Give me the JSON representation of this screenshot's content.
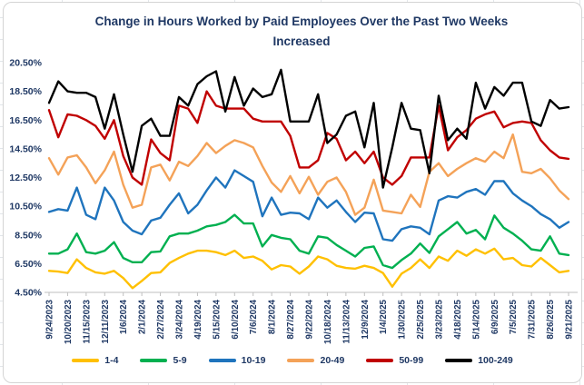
{
  "chart_data": {
    "type": "line",
    "title": "Change in Hours Worked by Paid Employees Over the Past Two Weeks Increased",
    "title_line1": "Change in Hours Worked by Paid Employees Over the Past Two Weeks",
    "title_line2": "Increased",
    "xlabel": "",
    "ylabel": "",
    "ylim": [
      4.5,
      20.5
    ],
    "ytick_step": 2,
    "ytick_format": "percent-2dp",
    "grid": false,
    "legend_position": "bottom",
    "x_labels_shown_every": 2,
    "text_color": "#1f3864",
    "axis_color": "#bfbfbf",
    "x": [
      "9/24/2023",
      "10/7/2023",
      "10/20/2023",
      "11/2/2023",
      "11/15/2023",
      "11/28/2023",
      "12/11/2023",
      "12/24/2023",
      "1/6/2024",
      "1/19/2024",
      "2/1/2024",
      "2/14/2024",
      "2/27/2024",
      "3/11/2024",
      "3/24/2024",
      "4/6/2024",
      "4/19/2024",
      "5/2/2024",
      "5/15/2024",
      "5/28/2024",
      "6/10/2024",
      "6/23/2024",
      "7/6/2024",
      "7/19/2024",
      "8/1/2024",
      "8/14/2024",
      "8/27/2024",
      "9/9/2024",
      "9/22/2024",
      "10/5/2024",
      "10/18/2024",
      "10/31/2024",
      "11/13/2024",
      "11/26/2024",
      "12/9/2024",
      "12/22/2024",
      "1/4/2025",
      "1/17/2025",
      "1/30/2025",
      "2/12/2025",
      "2/25/2025",
      "3/10/2025",
      "3/23/2025",
      "4/5/2025",
      "4/18/2025",
      "5/1/2025",
      "5/14/2025",
      "5/27/2025",
      "6/9/2025",
      "6/22/2025",
      "7/5/2025",
      "7/18/2025",
      "7/31/2025",
      "8/13/2025",
      "8/26/2025",
      "9/8/2025",
      "9/21/2025"
    ],
    "x_tick_labels": [
      "9/24/2023",
      "10/20/2023",
      "11/15/2023",
      "12/11/2023",
      "1/6/2024",
      "2/1/2024",
      "2/27/2024",
      "3/24/2024",
      "4/19/2024",
      "5/15/2024",
      "6/10/2024",
      "7/6/2024",
      "8/1/2024",
      "8/27/2024",
      "9/22/2024",
      "10/18/2024",
      "11/13/2024",
      "12/9/2024",
      "1/4/2025",
      "1/30/2025",
      "2/25/2025",
      "3/23/2025",
      "4/18/2025",
      "5/14/2025",
      "6/9/2025",
      "7/5/2025",
      "7/31/2025",
      "8/26/2025",
      "9/21/2025"
    ],
    "y_tick_labels": [
      "4.50%",
      "6.50%",
      "8.50%",
      "10.50%",
      "12.50%",
      "14.50%",
      "16.50%",
      "18.50%",
      "20.50%"
    ],
    "series": [
      {
        "name": "1-4",
        "color": "#ffc000",
        "values": [
          6.0,
          5.95,
          5.85,
          6.8,
          6.2,
          5.9,
          5.8,
          6.0,
          5.5,
          4.8,
          5.3,
          5.85,
          5.9,
          6.55,
          6.9,
          7.2,
          7.4,
          7.4,
          7.3,
          7.1,
          7.4,
          6.9,
          7.0,
          6.7,
          6.1,
          6.4,
          6.3,
          5.8,
          6.3,
          7.0,
          6.8,
          6.35,
          6.2,
          6.15,
          6.35,
          6.2,
          5.85,
          4.9,
          5.8,
          6.2,
          6.8,
          6.2,
          7.0,
          6.7,
          7.4,
          7.05,
          7.5,
          7.2,
          7.55,
          6.8,
          6.9,
          6.4,
          6.3,
          6.9,
          6.4,
          5.9,
          6.0
        ]
      },
      {
        "name": "5-9",
        "color": "#00b050",
        "values": [
          7.2,
          7.2,
          7.5,
          8.6,
          7.3,
          7.2,
          7.4,
          8.0,
          6.9,
          6.6,
          6.6,
          7.3,
          7.35,
          8.4,
          8.6,
          8.6,
          8.8,
          9.1,
          9.2,
          9.4,
          9.9,
          9.3,
          9.3,
          7.7,
          8.5,
          8.3,
          8.2,
          7.4,
          7.2,
          8.4,
          8.3,
          7.8,
          7.4,
          7.0,
          7.6,
          7.7,
          6.4,
          6.2,
          6.75,
          7.2,
          7.9,
          7.25,
          8.4,
          8.9,
          9.4,
          8.6,
          8.85,
          8.2,
          9.85,
          9.0,
          8.6,
          8.1,
          7.5,
          7.4,
          8.4,
          7.2,
          7.1
        ]
      },
      {
        "name": "10-19",
        "color": "#1f74bd",
        "values": [
          10.1,
          10.3,
          10.2,
          11.8,
          9.9,
          9.6,
          11.8,
          10.9,
          9.4,
          8.8,
          8.55,
          9.5,
          9.7,
          10.6,
          11.4,
          10.0,
          10.6,
          11.6,
          12.5,
          11.8,
          13.0,
          12.6,
          12.2,
          9.8,
          11.1,
          9.9,
          10.05,
          10.0,
          9.6,
          11.1,
          10.4,
          10.9,
          10.1,
          9.4,
          10.05,
          10.0,
          8.2,
          8.1,
          8.9,
          9.1,
          9.0,
          8.55,
          10.9,
          11.2,
          11.1,
          11.5,
          11.7,
          11.3,
          12.25,
          12.25,
          11.4,
          10.9,
          10.5,
          9.95,
          9.6,
          9.0,
          9.4
        ]
      },
      {
        "name": "20-49",
        "color": "#f4a258",
        "values": [
          13.85,
          12.7,
          13.9,
          14.05,
          13.2,
          12.1,
          13.0,
          14.3,
          12.0,
          10.4,
          10.6,
          13.2,
          13.4,
          12.3,
          13.6,
          13.3,
          14.0,
          14.9,
          14.2,
          14.7,
          15.1,
          14.9,
          14.6,
          13.3,
          12.15,
          11.5,
          12.6,
          11.4,
          12.55,
          11.3,
          12.2,
          12.5,
          11.5,
          9.9,
          10.4,
          12.35,
          10.2,
          10.1,
          10.0,
          11.3,
          10.45,
          12.9,
          13.5,
          12.6,
          13.1,
          13.5,
          13.85,
          13.6,
          14.3,
          13.85,
          15.5,
          12.9,
          12.8,
          13.1,
          12.45,
          11.6,
          11.0
        ]
      },
      {
        "name": "50-99",
        "color": "#c00000",
        "values": [
          17.2,
          15.3,
          16.9,
          16.8,
          16.5,
          16.1,
          15.2,
          16.5,
          14.0,
          12.5,
          12.0,
          15.15,
          14.2,
          13.7,
          17.5,
          17.3,
          16.3,
          18.5,
          17.5,
          17.3,
          17.3,
          17.3,
          16.6,
          16.4,
          16.4,
          16.4,
          15.4,
          13.2,
          13.2,
          13.7,
          15.6,
          15.2,
          13.7,
          14.3,
          13.5,
          14.3,
          12.5,
          12.0,
          12.6,
          13.9,
          13.9,
          13.9,
          17.5,
          14.4,
          15.3,
          15.8,
          16.6,
          16.9,
          17.1,
          16.0,
          16.3,
          16.4,
          16.3,
          15.1,
          14.4,
          13.9,
          13.8
        ]
      },
      {
        "name": "100-249",
        "color": "#000000",
        "values": [
          17.7,
          19.2,
          18.5,
          18.4,
          18.4,
          18.1,
          15.9,
          18.3,
          15.5,
          12.9,
          16.1,
          16.6,
          15.4,
          15.4,
          18.1,
          17.5,
          19.0,
          19.55,
          19.9,
          17.1,
          19.5,
          17.5,
          18.7,
          18.1,
          18.3,
          20.0,
          16.4,
          16.4,
          16.4,
          18.3,
          14.9,
          15.5,
          16.8,
          17.1,
          14.6,
          17.7,
          11.8,
          14.6,
          17.7,
          15.9,
          15.8,
          12.8,
          18.2,
          15.1,
          15.9,
          15.2,
          19.1,
          17.3,
          18.8,
          18.2,
          19.1,
          19.1,
          16.4,
          16.1,
          17.9,
          17.3,
          17.4
        ]
      }
    ]
  }
}
